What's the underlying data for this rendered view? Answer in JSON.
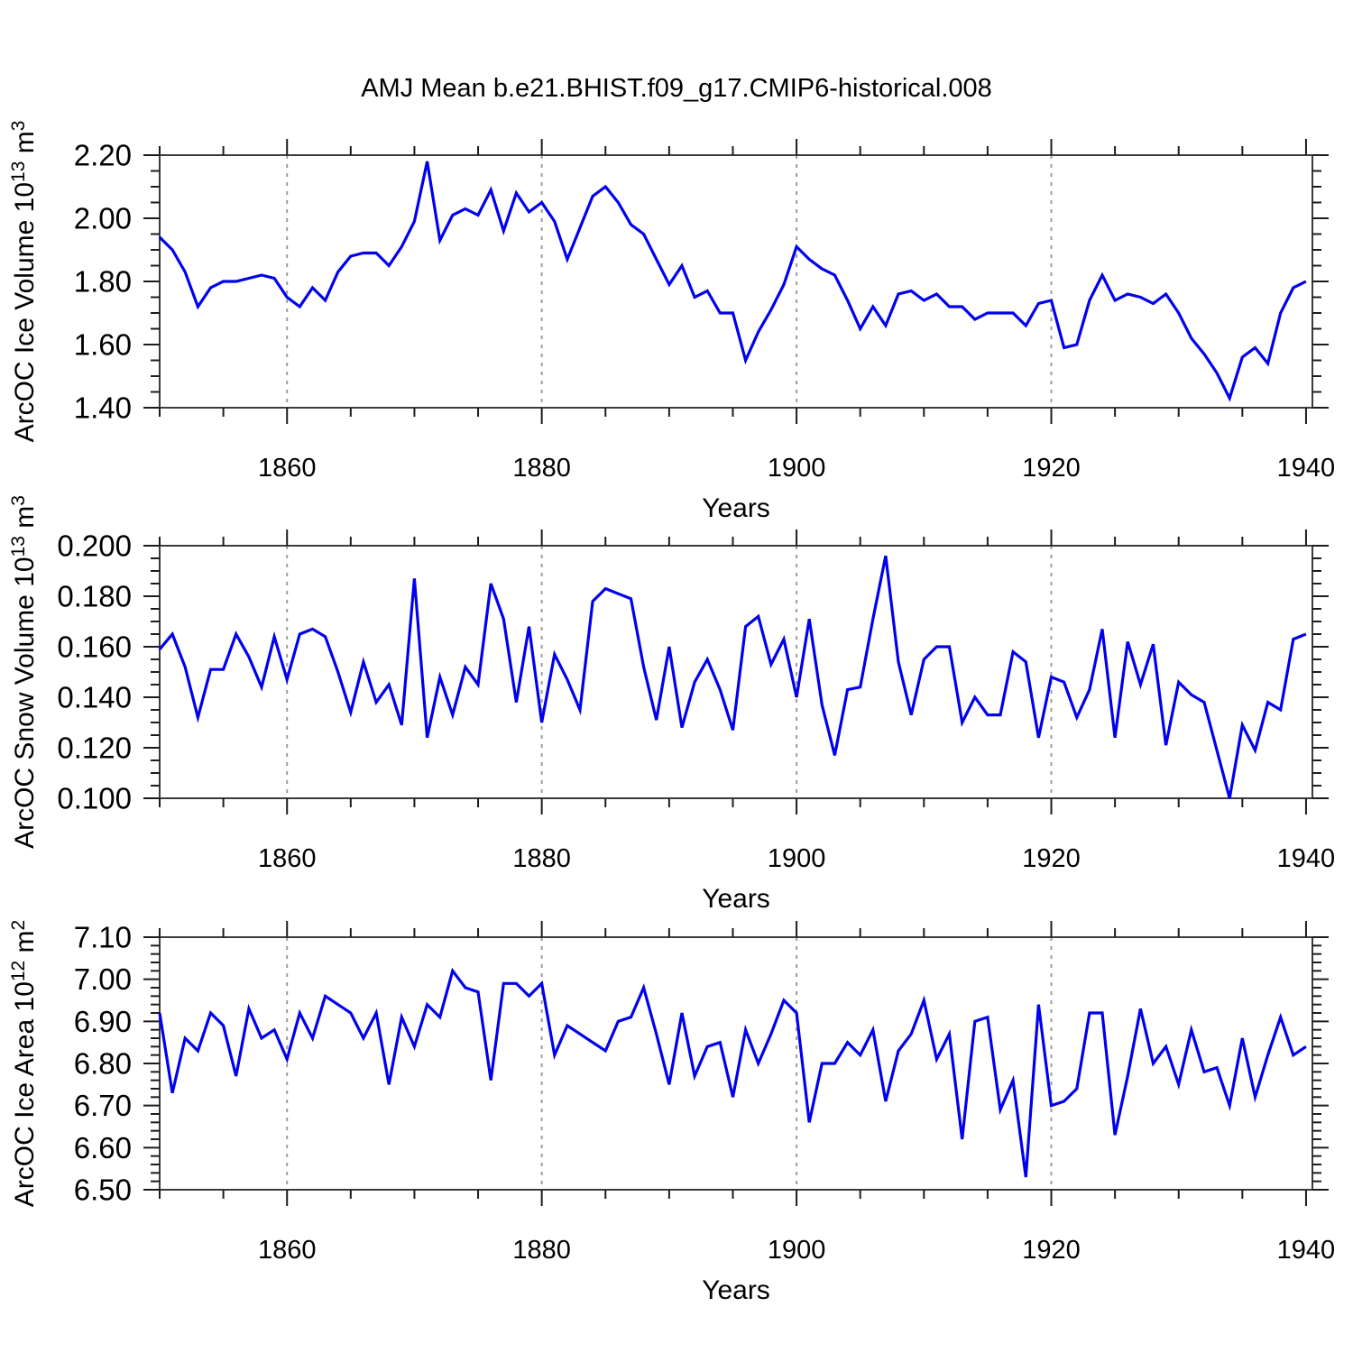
{
  "header": {
    "title": "AMJ Mean b.e21.BHIST.f09_g17.CMIP6-historical.008"
  },
  "style": {
    "line_color": "#0000ee",
    "frame_color": "#3c3c3c",
    "dashed_gridline_color": "#9c9c9c",
    "background": "#ffffff"
  },
  "chart_data": [
    {
      "type": "line",
      "name": "ice-volume",
      "ylabel_main": "ArcOC Ice Volume 10",
      "ylabel_exp": "13",
      "ylabel_unit": " m",
      "ylabel_unit_exp": "3",
      "xlabel": "Years",
      "x_start": 1850,
      "x_end": 1940,
      "x_step": 1,
      "xticks_major": [
        1860,
        1880,
        1900,
        1920,
        1940
      ],
      "xtick_minor_step": 5,
      "gridlines_x_dashed": [
        1860,
        1880,
        1900,
        1920
      ],
      "grid": "dashed-vertical-only",
      "legend": "none",
      "ylim": [
        1.4,
        2.2
      ],
      "yticks_major": [
        1.4,
        1.6,
        1.8,
        2.0,
        2.2
      ],
      "ytick_labels": [
        "1.40",
        "1.60",
        "1.80",
        "2.00",
        "2.20"
      ],
      "ytick_minor_step": 0.05,
      "values": [
        1.94,
        1.9,
        1.83,
        1.72,
        1.78,
        1.8,
        1.8,
        1.81,
        1.82,
        1.81,
        1.75,
        1.72,
        1.78,
        1.74,
        1.83,
        1.88,
        1.89,
        1.89,
        1.85,
        1.91,
        1.99,
        2.18,
        1.93,
        2.01,
        2.03,
        2.01,
        2.09,
        1.96,
        2.08,
        2.02,
        2.05,
        1.99,
        1.87,
        1.97,
        2.07,
        2.1,
        2.05,
        1.98,
        1.95,
        1.87,
        1.79,
        1.85,
        1.75,
        1.77,
        1.7,
        1.7,
        1.55,
        1.64,
        1.71,
        1.79,
        1.91,
        1.87,
        1.84,
        1.82,
        1.74,
        1.65,
        1.72,
        1.66,
        1.76,
        1.77,
        1.74,
        1.76,
        1.72,
        1.72,
        1.68,
        1.7,
        1.7,
        1.7,
        1.66,
        1.73,
        1.74,
        1.59,
        1.6,
        1.74,
        1.82,
        1.74,
        1.76,
        1.75,
        1.73,
        1.76,
        1.7,
        1.62,
        1.57,
        1.51,
        1.43,
        1.56,
        1.59,
        1.54,
        1.7,
        1.78,
        1.8
      ]
    },
    {
      "type": "line",
      "name": "snow-volume",
      "ylabel_main": "ArcOC Snow Volume 10",
      "ylabel_exp": "13",
      "ylabel_unit": " m",
      "ylabel_unit_exp": "3",
      "xlabel": "Years",
      "x_start": 1850,
      "x_end": 1940,
      "x_step": 1,
      "xticks_major": [
        1860,
        1880,
        1900,
        1920,
        1940
      ],
      "xtick_minor_step": 5,
      "gridlines_x_dashed": [
        1860,
        1880,
        1900,
        1920
      ],
      "grid": "dashed-vertical-only",
      "legend": "none",
      "ylim": [
        0.1,
        0.2
      ],
      "yticks_major": [
        0.1,
        0.12,
        0.14,
        0.16,
        0.18,
        0.2
      ],
      "ytick_labels": [
        "0.100",
        "0.120",
        "0.140",
        "0.160",
        "0.180",
        "0.200"
      ],
      "ytick_minor_step": 0.005,
      "values": [
        0.159,
        0.165,
        0.152,
        0.132,
        0.151,
        0.151,
        0.165,
        0.156,
        0.144,
        0.164,
        0.147,
        0.165,
        0.167,
        0.164,
        0.15,
        0.134,
        0.154,
        0.138,
        0.145,
        0.129,
        0.187,
        0.124,
        0.148,
        0.133,
        0.152,
        0.145,
        0.185,
        0.171,
        0.138,
        0.168,
        0.13,
        0.157,
        0.147,
        0.135,
        0.178,
        0.183,
        0.181,
        0.179,
        0.152,
        0.131,
        0.16,
        0.128,
        0.146,
        0.155,
        0.143,
        0.127,
        0.168,
        0.172,
        0.153,
        0.163,
        0.14,
        0.171,
        0.137,
        0.117,
        0.143,
        0.144,
        0.171,
        0.196,
        0.154,
        0.133,
        0.155,
        0.16,
        0.16,
        0.13,
        0.14,
        0.133,
        0.133,
        0.158,
        0.154,
        0.124,
        0.148,
        0.146,
        0.132,
        0.143,
        0.167,
        0.124,
        0.162,
        0.145,
        0.161,
        0.121,
        0.146,
        0.141,
        0.138,
        0.119,
        0.1,
        0.129,
        0.119,
        0.138,
        0.135,
        0.163,
        0.165
      ]
    },
    {
      "type": "line",
      "name": "ice-area",
      "ylabel_main": "ArcOC Ice Area 10",
      "ylabel_exp": "12",
      "ylabel_unit": " m",
      "ylabel_unit_exp": "2",
      "xlabel": "Years",
      "x_start": 1850,
      "x_end": 1940,
      "x_step": 1,
      "xticks_major": [
        1860,
        1880,
        1900,
        1920,
        1940
      ],
      "xtick_minor_step": 5,
      "gridlines_x_dashed": [
        1860,
        1880,
        1900,
        1920
      ],
      "grid": "dashed-vertical-only",
      "legend": "none",
      "ylim": [
        6.5,
        7.1
      ],
      "yticks_major": [
        6.5,
        6.6,
        6.7,
        6.8,
        6.9,
        7.0,
        7.1
      ],
      "ytick_labels": [
        "6.50",
        "6.60",
        "6.70",
        "6.80",
        "6.90",
        "7.00",
        "7.10"
      ],
      "ytick_minor_step": 0.02,
      "values": [
        6.92,
        6.73,
        6.86,
        6.83,
        6.92,
        6.89,
        6.77,
        6.93,
        6.86,
        6.88,
        6.81,
        6.92,
        6.86,
        6.96,
        6.94,
        6.92,
        6.86,
        6.92,
        6.75,
        6.91,
        6.84,
        6.94,
        6.91,
        7.02,
        6.98,
        6.97,
        6.76,
        6.99,
        6.99,
        6.96,
        6.99,
        6.82,
        6.89,
        6.87,
        6.85,
        6.83,
        6.9,
        6.91,
        6.98,
        6.87,
        6.75,
        6.92,
        6.77,
        6.84,
        6.85,
        6.72,
        6.88,
        6.8,
        6.87,
        6.95,
        6.92,
        6.66,
        6.8,
        6.8,
        6.85,
        6.82,
        6.88,
        6.71,
        6.83,
        6.87,
        6.95,
        6.81,
        6.87,
        6.62,
        6.9,
        6.91,
        6.69,
        6.76,
        6.53,
        6.94,
        6.7,
        6.71,
        6.74,
        6.92,
        6.92,
        6.63,
        6.77,
        6.93,
        6.8,
        6.84,
        6.75,
        6.88,
        6.78,
        6.79,
        6.7,
        6.86,
        6.72,
        6.82,
        6.91,
        6.82,
        6.84
      ]
    }
  ]
}
